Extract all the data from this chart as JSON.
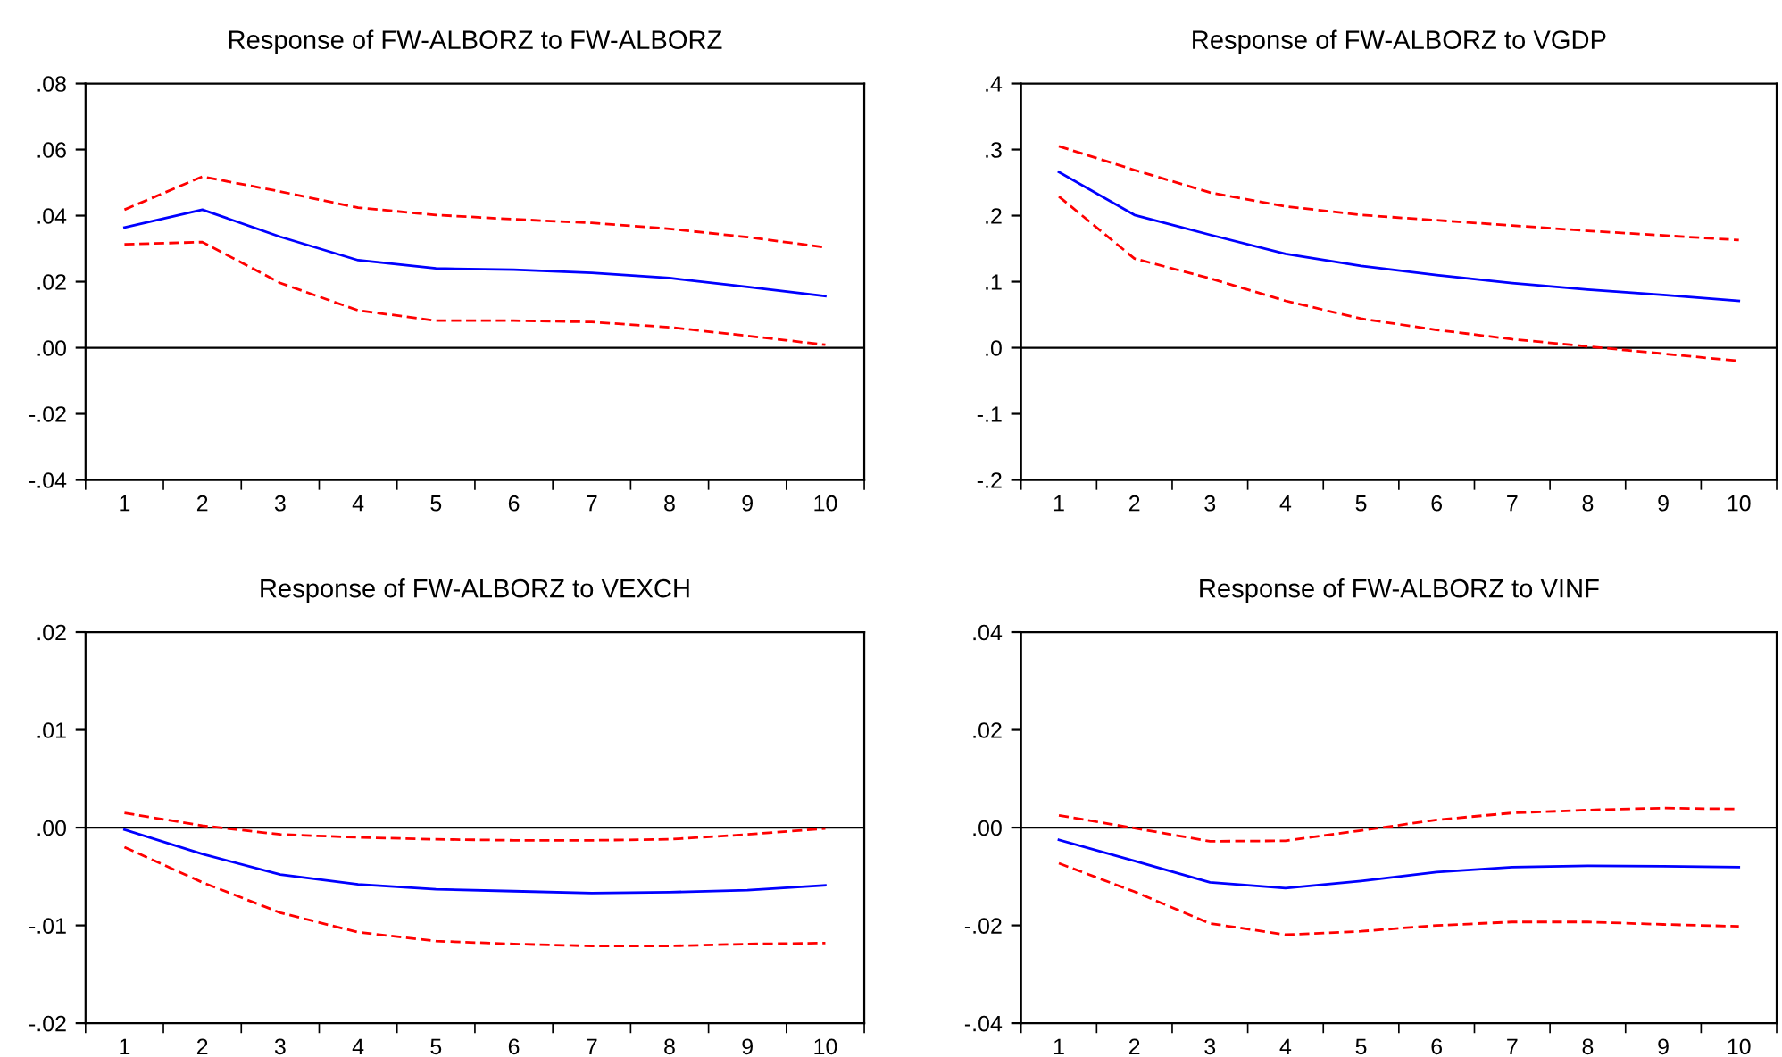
{
  "chart_data": [
    {
      "type": "line",
      "title": "Response of FW-ALBORZ to FW-ALBORZ",
      "categories": [
        "1",
        "2",
        "3",
        "4",
        "5",
        "6",
        "7",
        "8",
        "9",
        "10"
      ],
      "ylim": [
        -0.04,
        0.08
      ],
      "yticks": [
        {
          "value": -0.04,
          "label": "-.04"
        },
        {
          "value": -0.02,
          "label": "-.02"
        },
        {
          "value": 0,
          "label": ".00"
        },
        {
          "value": 0.02,
          "label": ".02"
        },
        {
          "value": 0.04,
          "label": ".04"
        },
        {
          "value": 0.06,
          "label": ".06"
        },
        {
          "value": 0.08,
          "label": ".08"
        }
      ],
      "ref_lines": [
        {
          "axis": "y",
          "value": 0,
          "color": "#000000",
          "line_style": "solid"
        }
      ],
      "series": [
        {
          "color": "#0000ff",
          "line_style": "solid",
          "values": [
            0.0364,
            0.0418,
            0.0336,
            0.0265,
            0.024,
            0.0236,
            0.0227,
            0.0211,
            0.0184,
            0.0156
          ]
        },
        {
          "color": "#ff0000",
          "line_style": "dashed",
          "values": [
            0.0418,
            0.0518,
            0.0473,
            0.0424,
            0.0402,
            0.0389,
            0.0378,
            0.036,
            0.0335,
            0.0304
          ]
        },
        {
          "color": "#ff0000",
          "line_style": "dashed",
          "values": [
            0.0313,
            0.032,
            0.0196,
            0.0113,
            0.0082,
            0.0082,
            0.0078,
            0.0062,
            0.0036,
            0.0009
          ]
        }
      ]
    },
    {
      "type": "line",
      "title": "Response of FW-ALBORZ to VGDP",
      "categories": [
        "1",
        "2",
        "3",
        "4",
        "5",
        "6",
        "7",
        "8",
        "9",
        "10"
      ],
      "ylim": [
        -0.2,
        0.4
      ],
      "yticks": [
        {
          "value": -0.2,
          "label": "-.2"
        },
        {
          "value": -0.1,
          "label": "-.1"
        },
        {
          "value": 0,
          "label": ".0"
        },
        {
          "value": 0.1,
          "label": ".1"
        },
        {
          "value": 0.2,
          "label": ".2"
        },
        {
          "value": 0.3,
          "label": ".3"
        },
        {
          "value": 0.4,
          "label": ".4"
        }
      ],
      "ref_lines": [
        {
          "axis": "y",
          "value": 0,
          "color": "#000000",
          "line_style": "solid"
        }
      ],
      "series": [
        {
          "color": "#0000ff",
          "line_style": "solid",
          "values": [
            0.266,
            0.201,
            0.171,
            0.142,
            0.124,
            0.11,
            0.098,
            0.088,
            0.08,
            0.071
          ]
        },
        {
          "color": "#ff0000",
          "line_style": "dashed",
          "values": [
            0.305,
            0.269,
            0.235,
            0.214,
            0.201,
            0.193,
            0.185,
            0.177,
            0.17,
            0.163
          ]
        },
        {
          "color": "#ff0000",
          "line_style": "dashed",
          "values": [
            0.229,
            0.135,
            0.105,
            0.071,
            0.044,
            0.027,
            0.013,
            0.002,
            -0.009,
            -0.02
          ]
        }
      ]
    },
    {
      "type": "line",
      "title": "Response of FW-ALBORZ to VEXCH",
      "categories": [
        "1",
        "2",
        "3",
        "4",
        "5",
        "6",
        "7",
        "8",
        "9",
        "10"
      ],
      "ylim": [
        -0.02,
        0.02
      ],
      "yticks": [
        {
          "value": -0.02,
          "label": "-.02"
        },
        {
          "value": -0.01,
          "label": "-.01"
        },
        {
          "value": 0,
          "label": ".00"
        },
        {
          "value": 0.01,
          "label": ".01"
        },
        {
          "value": 0.02,
          "label": ".02"
        }
      ],
      "ref_lines": [
        {
          "axis": "y",
          "value": 0,
          "color": "#000000",
          "line_style": "solid"
        }
      ],
      "series": [
        {
          "color": "#0000ff",
          "line_style": "solid",
          "values": [
            -0.0002,
            -0.0027,
            -0.0048,
            -0.0058,
            -0.0063,
            -0.0065,
            -0.0067,
            -0.0066,
            -0.0064,
            -0.0059
          ]
        },
        {
          "color": "#ff0000",
          "line_style": "dashed",
          "values": [
            0.0015,
            0.0002,
            -0.0007,
            -0.001,
            -0.0012,
            -0.0013,
            -0.0013,
            -0.0012,
            -0.0007,
            -0.0001
          ]
        },
        {
          "color": "#ff0000",
          "line_style": "dashed",
          "values": [
            -0.002,
            -0.0056,
            -0.0087,
            -0.0107,
            -0.0116,
            -0.0119,
            -0.0121,
            -0.0121,
            -0.0119,
            -0.0118
          ]
        }
      ]
    },
    {
      "type": "line",
      "title": "Response of FW-ALBORZ to VINF",
      "categories": [
        "1",
        "2",
        "3",
        "4",
        "5",
        "6",
        "7",
        "8",
        "9",
        "10"
      ],
      "ylim": [
        -0.04,
        0.04
      ],
      "yticks": [
        {
          "value": -0.04,
          "label": "-.04"
        },
        {
          "value": -0.02,
          "label": "-.02"
        },
        {
          "value": 0,
          "label": ".00"
        },
        {
          "value": 0.02,
          "label": ".02"
        },
        {
          "value": 0.04,
          "label": ".04"
        }
      ],
      "ref_lines": [
        {
          "axis": "y",
          "value": 0,
          "color": "#000000",
          "line_style": "solid"
        }
      ],
      "series": [
        {
          "color": "#0000ff",
          "line_style": "solid",
          "values": [
            -0.0025,
            -0.0068,
            -0.0112,
            -0.0124,
            -0.0109,
            -0.0091,
            -0.0081,
            -0.0078,
            -0.0079,
            -0.0081
          ]
        },
        {
          "color": "#ff0000",
          "line_style": "dashed",
          "values": [
            0.0025,
            -0.0001,
            -0.0028,
            -0.0027,
            -0.0006,
            0.0016,
            0.003,
            0.0036,
            0.004,
            0.0038
          ]
        },
        {
          "color": "#ff0000",
          "line_style": "dashed",
          "values": [
            -0.0073,
            -0.0131,
            -0.0196,
            -0.0219,
            -0.0212,
            -0.02,
            -0.0193,
            -0.0193,
            -0.0198,
            -0.0202
          ]
        }
      ]
    }
  ]
}
